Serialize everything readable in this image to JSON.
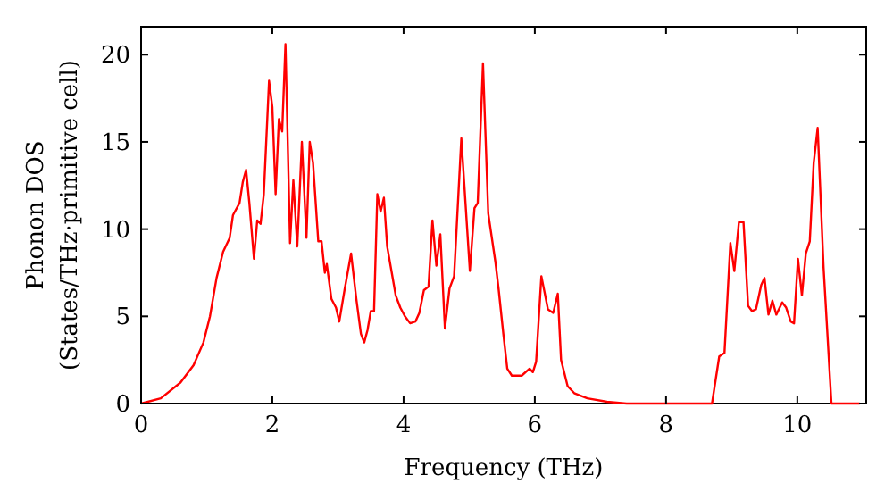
{
  "chart_data": {
    "type": "line",
    "xlabel": "Frequency (THz)",
    "ylabel": "Phonon DOS\n(States/THz·primitive cell)",
    "xlim": [
      0,
      11.05
    ],
    "ylim": [
      0,
      21.6
    ],
    "xticks": [
      0,
      2,
      4,
      6,
      8,
      10
    ],
    "yticks": [
      0,
      5,
      10,
      15,
      20
    ],
    "grid": false,
    "marker": "none",
    "line_style": "solid",
    "series": [
      {
        "color": "#ff0000",
        "x": [
          0,
          0.3,
          0.6,
          0.8,
          0.95,
          1.05,
          1.15,
          1.25,
          1.35,
          1.4,
          1.5,
          1.55,
          1.6,
          1.65,
          1.72,
          1.77,
          1.82,
          1.87,
          1.95,
          2.0,
          2.05,
          2.1,
          2.15,
          2.2,
          2.27,
          2.32,
          2.38,
          2.45,
          2.52,
          2.57,
          2.62,
          2.7,
          2.75,
          2.8,
          2.83,
          2.9,
          2.97,
          3.02,
          3.1,
          3.2,
          3.28,
          3.35,
          3.4,
          3.45,
          3.5,
          3.55,
          3.6,
          3.65,
          3.7,
          3.75,
          3.82,
          3.88,
          3.95,
          4.02,
          4.1,
          4.18,
          4.24,
          4.31,
          4.38,
          4.44,
          4.5,
          4.56,
          4.63,
          4.7,
          4.77,
          4.88,
          5.01,
          5.08,
          5.13,
          5.21,
          5.29,
          5.4,
          5.45,
          5.52,
          5.58,
          5.65,
          5.8,
          5.92,
          5.97,
          6.02,
          6.1,
          6.2,
          6.28,
          6.35,
          6.4,
          6.5,
          6.6,
          6.8,
          7.1,
          7.4,
          8.0,
          8.7,
          8.81,
          8.89,
          8.98,
          9.04,
          9.11,
          9.18,
          9.25,
          9.31,
          9.37,
          9.45,
          9.5,
          9.56,
          9.62,
          9.68,
          9.77,
          9.83,
          9.9,
          9.95,
          10.01,
          10.07,
          10.13,
          10.19,
          10.25,
          10.31,
          10.4,
          10.52,
          10.95
        ],
        "values": [
          0,
          0.3,
          1.2,
          2.2,
          3.5,
          5,
          7.2,
          8.7,
          9.5,
          10.8,
          11.5,
          12.7,
          13.4,
          11.5,
          8.3,
          10.5,
          10.3,
          12,
          18.5,
          17,
          12,
          16.3,
          15.6,
          20.6,
          9.2,
          12.8,
          9,
          15,
          9.5,
          15,
          13.8,
          9.3,
          9.3,
          7.5,
          8,
          6,
          5.5,
          4.7,
          6.5,
          8.6,
          6,
          4,
          3.5,
          4.2,
          5.3,
          5.3,
          12,
          11,
          11.8,
          9,
          7.5,
          6.2,
          5.5,
          5,
          4.6,
          4.7,
          5.2,
          6.5,
          6.7,
          10.5,
          7.9,
          9.7,
          4.3,
          6.6,
          7.3,
          15.2,
          7.6,
          11.2,
          11.5,
          19.5,
          10.9,
          8.1,
          6.5,
          4,
          2,
          1.6,
          1.6,
          2,
          1.8,
          2.4,
          7.3,
          5.4,
          5.2,
          6.3,
          2.5,
          1,
          0.6,
          0.3,
          0.1,
          0,
          0,
          0,
          2.7,
          2.9,
          9.2,
          7.6,
          10.4,
          10.4,
          5.6,
          5.3,
          5.4,
          6.8,
          7.2,
          5.1,
          5.9,
          5.1,
          5.8,
          5.5,
          4.7,
          4.6,
          8.3,
          6.2,
          8.6,
          9.3,
          13.8,
          15.8,
          7.8,
          0,
          0
        ]
      }
    ]
  }
}
